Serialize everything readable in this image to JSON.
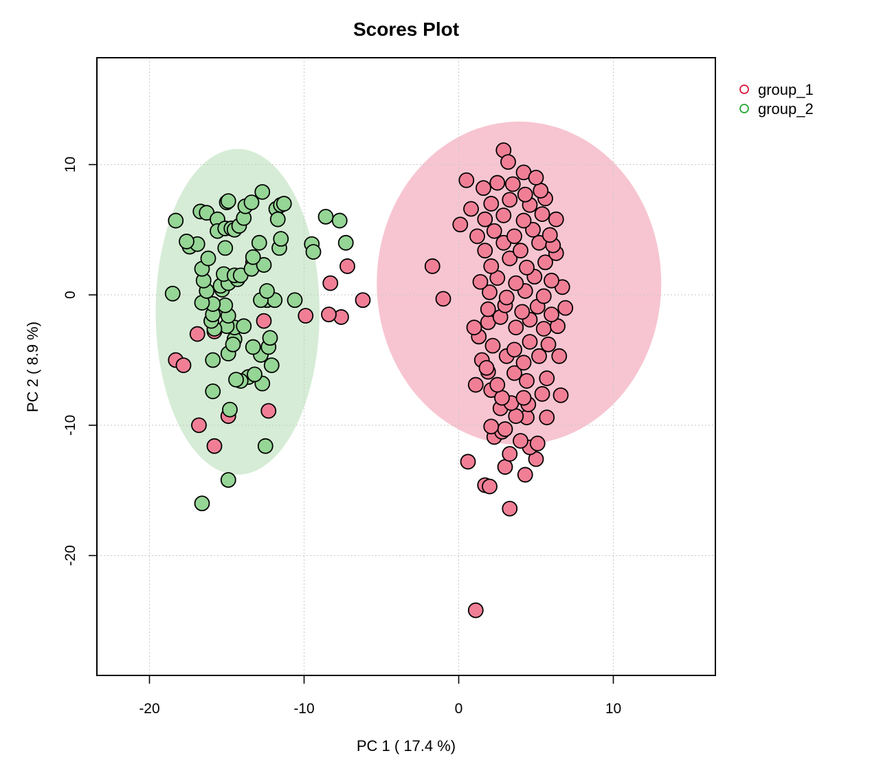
{
  "chart_data": {
    "type": "scatter",
    "title": "Scores Plot",
    "xlabel": "PC 1 ( 17.4 %)",
    "ylabel": "PC 2 ( 8.9 %)",
    "xlim": [
      -23.4,
      16.6
    ],
    "ylim": [
      -29.2,
      18.2
    ],
    "xticks": [
      -20,
      -10,
      0,
      10
    ],
    "yticks": [
      10,
      0,
      -10,
      -20
    ],
    "grid": true,
    "legend": {
      "position": "top-right",
      "entries": [
        "group_1",
        "group_2"
      ]
    },
    "colors": {
      "group_1": "#dc143c",
      "group_2": "#23a832",
      "group_1_fill": "#f07f96",
      "group_2_fill": "#95d595",
      "group_1_ellipse": "#f7c5d1",
      "group_2_ellipse": "#d6ecd6"
    },
    "ellipses": [
      {
        "group": "group_1",
        "center": [
          3.9,
          0.9
        ],
        "semi_axes": [
          9.2,
          12.4
        ]
      },
      {
        "group": "group_2",
        "center": [
          -14.3,
          -1.3
        ],
        "semi_axes": [
          5.3,
          12.5
        ]
      }
    ],
    "series": [
      {
        "name": "group_1",
        "points": [
          [
            1.1,
            -24.2
          ],
          [
            3.3,
            -16.4
          ],
          [
            1.7,
            -14.6
          ],
          [
            2.0,
            -14.7
          ],
          [
            0.6,
            -12.8
          ],
          [
            4.3,
            -13.8
          ],
          [
            3.0,
            -13.2
          ],
          [
            3.3,
            -12.2
          ],
          [
            5.0,
            -12.6
          ],
          [
            4.6,
            -11.7
          ],
          [
            2.3,
            -10.9
          ],
          [
            2.8,
            -10.5
          ],
          [
            3.0,
            -10.3
          ],
          [
            4.0,
            -11.2
          ],
          [
            5.1,
            -11.4
          ],
          [
            2.1,
            -10.1
          ],
          [
            4.4,
            -9.4
          ],
          [
            3.7,
            -9.3
          ],
          [
            5.7,
            -9.4
          ],
          [
            2.7,
            -8.7
          ],
          [
            3.4,
            -8.3
          ],
          [
            4.5,
            -8.4
          ],
          [
            1.1,
            -6.9
          ],
          [
            2.1,
            -7.3
          ],
          [
            2.8,
            -7.9
          ],
          [
            4.2,
            -7.9
          ],
          [
            5.4,
            -7.6
          ],
          [
            6.6,
            -7.7
          ],
          [
            1.9,
            -5.9
          ],
          [
            2.5,
            -6.9
          ],
          [
            3.6,
            -6.0
          ],
          [
            4.4,
            -6.6
          ],
          [
            5.7,
            -6.4
          ],
          [
            1.5,
            -5.0
          ],
          [
            1.8,
            -5.6
          ],
          [
            3.1,
            -4.7
          ],
          [
            4.2,
            -5.2
          ],
          [
            5.2,
            -4.7
          ],
          [
            6.5,
            -4.7
          ],
          [
            1.3,
            -3.2
          ],
          [
            2.2,
            -3.9
          ],
          [
            3.6,
            -4.2
          ],
          [
            4.6,
            -3.6
          ],
          [
            5.8,
            -3.8
          ],
          [
            1.0,
            -2.5
          ],
          [
            1.9,
            -2.1
          ],
          [
            2.7,
            -1.7
          ],
          [
            3.7,
            -2.5
          ],
          [
            4.6,
            -1.9
          ],
          [
            5.5,
            -2.6
          ],
          [
            6.4,
            -2.4
          ],
          [
            1.9,
            -1.1
          ],
          [
            3.0,
            -0.8
          ],
          [
            4.1,
            -1.3
          ],
          [
            5.1,
            -0.9
          ],
          [
            6.0,
            -1.5
          ],
          [
            6.9,
            -1.0
          ],
          [
            2.0,
            0.2
          ],
          [
            3.1,
            -0.2
          ],
          [
            4.3,
            0.3
          ],
          [
            5.5,
            -0.1
          ],
          [
            6.7,
            0.6
          ],
          [
            1.4,
            1.0
          ],
          [
            2.5,
            1.3
          ],
          [
            3.7,
            0.9
          ],
          [
            4.9,
            1.4
          ],
          [
            6.0,
            1.1
          ],
          [
            2.1,
            2.2
          ],
          [
            3.3,
            2.8
          ],
          [
            4.4,
            2.1
          ],
          [
            5.6,
            2.5
          ],
          [
            6.3,
            3.2
          ],
          [
            1.7,
            3.4
          ],
          [
            2.9,
            4.0
          ],
          [
            4.0,
            3.4
          ],
          [
            5.2,
            4.0
          ],
          [
            6.1,
            3.8
          ],
          [
            1.2,
            4.5
          ],
          [
            2.3,
            4.9
          ],
          [
            3.6,
            4.5
          ],
          [
            4.8,
            5.0
          ],
          [
            5.9,
            4.6
          ],
          [
            0.1,
            5.4
          ],
          [
            1.7,
            5.8
          ],
          [
            2.9,
            6.1
          ],
          [
            4.2,
            5.7
          ],
          [
            5.4,
            6.2
          ],
          [
            6.3,
            5.8
          ],
          [
            0.8,
            6.6
          ],
          [
            2.1,
            7.0
          ],
          [
            3.3,
            7.3
          ],
          [
            4.6,
            6.9
          ],
          [
            5.6,
            7.4
          ],
          [
            0.5,
            8.8
          ],
          [
            1.6,
            8.2
          ],
          [
            2.5,
            8.6
          ],
          [
            3.5,
            8.5
          ],
          [
            4.3,
            7.7
          ],
          [
            5.3,
            8.0
          ],
          [
            2.9,
            11.1
          ],
          [
            3.2,
            10.2
          ],
          [
            4.2,
            9.4
          ],
          [
            5.0,
            9.0
          ],
          [
            -1.7,
            2.2
          ],
          [
            -1.0,
            -0.3
          ],
          [
            -6.2,
            -0.4
          ],
          [
            -7.2,
            2.2
          ],
          [
            -7.6,
            -1.7
          ],
          [
            -8.3,
            0.9
          ],
          [
            -8.4,
            -1.5
          ],
          [
            -9.9,
            -1.6
          ],
          [
            -13.3,
            2.5
          ],
          [
            -12.6,
            -2.0
          ],
          [
            -16.9,
            -3.0
          ],
          [
            -18.3,
            -5.0
          ],
          [
            -17.8,
            -5.4
          ],
          [
            -15.8,
            -2.8
          ],
          [
            -16.8,
            -10.0
          ],
          [
            -15.8,
            -11.6
          ],
          [
            -14.9,
            -9.3
          ],
          [
            -12.3,
            -8.9
          ]
        ]
      },
      {
        "name": "group_2",
        "points": [
          [
            -16.6,
            -16.0
          ],
          [
            -14.9,
            -14.2
          ],
          [
            -12.5,
            -11.6
          ],
          [
            -14.8,
            -8.8
          ],
          [
            -15.9,
            -7.4
          ],
          [
            -12.7,
            -6.8
          ],
          [
            -13.6,
            -6.3
          ],
          [
            -14.1,
            -6.6
          ],
          [
            -14.4,
            -6.5
          ],
          [
            -13.2,
            -6.1
          ],
          [
            -12.1,
            -5.4
          ],
          [
            -15.9,
            -5.0
          ],
          [
            -14.9,
            -4.5
          ],
          [
            -12.8,
            -4.6
          ],
          [
            -12.3,
            -4.0
          ],
          [
            -13.3,
            -4.0
          ],
          [
            -14.5,
            -3.4
          ],
          [
            -14.6,
            -3.8
          ],
          [
            -12.2,
            -3.3
          ],
          [
            -14.5,
            -2.5
          ],
          [
            -13.9,
            -2.4
          ],
          [
            -15.0,
            -2.4
          ],
          [
            -15.8,
            -2.6
          ],
          [
            -16.0,
            -2.0
          ],
          [
            -15.9,
            -1.5
          ],
          [
            -14.9,
            -1.6
          ],
          [
            -15.1,
            -0.8
          ],
          [
            -15.9,
            -0.7
          ],
          [
            -16.6,
            -0.6
          ],
          [
            -12.4,
            -0.4
          ],
          [
            -11.9,
            -0.4
          ],
          [
            -10.6,
            -0.4
          ],
          [
            -12.8,
            -0.4
          ],
          [
            -16.3,
            0.3
          ],
          [
            -15.3,
            0.4
          ],
          [
            -18.5,
            0.1
          ],
          [
            -12.4,
            0.3
          ],
          [
            -16.5,
            1.1
          ],
          [
            -15.4,
            0.7
          ],
          [
            -14.9,
            0.9
          ],
          [
            -14.3,
            1.2
          ],
          [
            -15.2,
            1.6
          ],
          [
            -14.5,
            1.5
          ],
          [
            -14.1,
            1.5
          ],
          [
            -16.6,
            2.0
          ],
          [
            -13.4,
            2.0
          ],
          [
            -12.6,
            2.3
          ],
          [
            -13.3,
            2.9
          ],
          [
            -16.2,
            2.8
          ],
          [
            -17.4,
            3.7
          ],
          [
            -16.9,
            3.9
          ],
          [
            -17.6,
            4.1
          ],
          [
            -15.1,
            3.6
          ],
          [
            -12.9,
            4.0
          ],
          [
            -11.6,
            3.6
          ],
          [
            -11.5,
            4.3
          ],
          [
            -9.5,
            3.9
          ],
          [
            -9.4,
            3.3
          ],
          [
            -7.3,
            4.0
          ],
          [
            -18.3,
            5.7
          ],
          [
            -16.7,
            6.4
          ],
          [
            -16.3,
            6.3
          ],
          [
            -15.6,
            5.8
          ],
          [
            -15.6,
            4.9
          ],
          [
            -15.1,
            5.1
          ],
          [
            -14.7,
            5.1
          ],
          [
            -14.5,
            5.0
          ],
          [
            -14.2,
            5.3
          ],
          [
            -13.9,
            5.9
          ],
          [
            -13.8,
            6.8
          ],
          [
            -13.4,
            7.1
          ],
          [
            -12.7,
            7.9
          ],
          [
            -11.8,
            6.6
          ],
          [
            -11.7,
            5.8
          ],
          [
            -11.5,
            6.9
          ],
          [
            -11.3,
            7.0
          ],
          [
            -8.6,
            6.0
          ],
          [
            -7.7,
            5.7
          ],
          [
            -15.0,
            7.1
          ],
          [
            -14.9,
            7.2
          ]
        ]
      }
    ]
  }
}
